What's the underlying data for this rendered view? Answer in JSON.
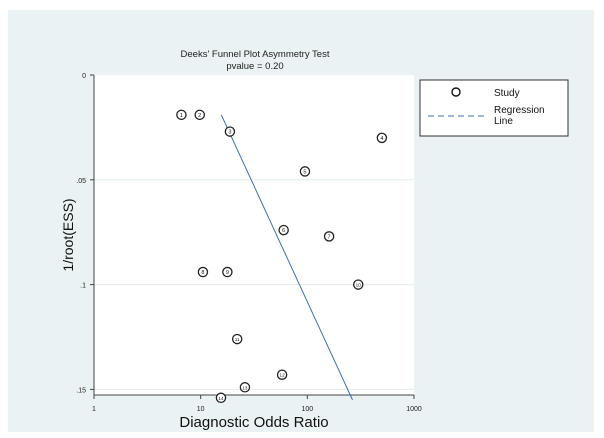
{
  "chart_data": {
    "type": "scatter",
    "title": "Deeks' Funnel Plot Asymmetry Test",
    "subtitle": "pvalue  =   0.20",
    "xlabel": "Diagnostic Odds Ratio",
    "ylabel": "1/root(ESS)",
    "x_scale": "log",
    "xlim": [
      1,
      1000
    ],
    "ylim": [
      0,
      0.152
    ],
    "y_reversed": true,
    "grid": true,
    "legend_position": "top-right",
    "x_ticks": [
      {
        "value": 1,
        "label": "1"
      },
      {
        "value": 10,
        "label": "10"
      },
      {
        "value": 100,
        "label": "100"
      },
      {
        "value": 1000,
        "label": "1000"
      }
    ],
    "y_ticks": [
      {
        "value": 0,
        "label": "0"
      },
      {
        "value": 0.05,
        "label": ".05"
      },
      {
        "value": 0.1,
        "label": ".1"
      },
      {
        "value": 0.15,
        "label": ".15"
      }
    ],
    "series": [
      {
        "name": "Study",
        "marker": "circle",
        "points": [
          {
            "label": "1",
            "x": 6.6,
            "y": 0.019
          },
          {
            "label": "2",
            "x": 9.8,
            "y": 0.019
          },
          {
            "label": "3",
            "x": 18.8,
            "y": 0.027
          },
          {
            "label": "4",
            "x": 500,
            "y": 0.03
          },
          {
            "label": "5",
            "x": 95,
            "y": 0.046
          },
          {
            "label": "6",
            "x": 60,
            "y": 0.074
          },
          {
            "label": "7",
            "x": 160,
            "y": 0.077
          },
          {
            "label": "8",
            "x": 10.5,
            "y": 0.094
          },
          {
            "label": "9",
            "x": 17.8,
            "y": 0.094
          },
          {
            "label": "10",
            "x": 300,
            "y": 0.1
          },
          {
            "label": "11",
            "x": 22,
            "y": 0.126
          },
          {
            "label": "12",
            "x": 58,
            "y": 0.143
          },
          {
            "label": "13",
            "x": 26,
            "y": 0.149
          },
          {
            "label": "14",
            "x": 15.5,
            "y": 0.154
          }
        ]
      },
      {
        "name": "Regression\nLine",
        "style": "line",
        "color": "#3e6fa8",
        "points": [
          {
            "x": 15.6,
            "y": 0.019
          },
          {
            "x": 265,
            "y": 0.155
          }
        ]
      }
    ],
    "legend": [
      {
        "label": "Study",
        "symbol": "circle"
      },
      {
        "label": "Regression",
        "label2": "Line",
        "symbol": "dashed-line"
      }
    ],
    "colors": {
      "outer_background": "#eaf2f3",
      "plot_background": "#ffffff",
      "grid": "#e2ebec",
      "regression_line": "#3e6fa8",
      "marker": "#222222"
    }
  }
}
